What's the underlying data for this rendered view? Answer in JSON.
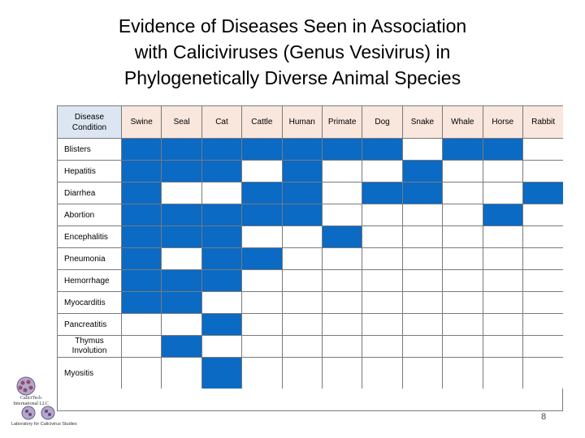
{
  "slide": {
    "title_lines": [
      "Evidence of Diseases Seen in Association",
      "with Caliciviruses (Genus Vesivirus) in",
      "Phylogenetically Diverse Animal Species"
    ],
    "page_number": "8"
  },
  "table": {
    "corner_line1": "Disease",
    "corner_line2": "Condition",
    "species": [
      "Swine",
      "Seal",
      "Cat",
      "Cattle",
      "Human",
      "Primate",
      "Dog",
      "Snake",
      "Whale",
      "Horse",
      "Rabbit"
    ],
    "rows": [
      {
        "label": "Blisters",
        "cells": [
          1,
          1,
          1,
          1,
          1,
          1,
          1,
          0,
          1,
          1,
          0
        ]
      },
      {
        "label": "Hepatitis",
        "cells": [
          1,
          1,
          1,
          0,
          1,
          0,
          0,
          1,
          0,
          0,
          0
        ]
      },
      {
        "label": "Diarrhea",
        "cells": [
          1,
          0,
          0,
          1,
          1,
          0,
          1,
          1,
          0,
          0,
          1
        ]
      },
      {
        "label": "Abortion",
        "cells": [
          1,
          1,
          1,
          1,
          1,
          0,
          0,
          0,
          0,
          1,
          0
        ]
      },
      {
        "label": "Encephalitis",
        "cells": [
          1,
          1,
          1,
          0,
          0,
          1,
          0,
          0,
          0,
          0,
          0
        ]
      },
      {
        "label": "Pneumonia",
        "cells": [
          1,
          0,
          1,
          1,
          0,
          0,
          0,
          0,
          0,
          0,
          0
        ]
      },
      {
        "label": "Hemorrhage",
        "cells": [
          1,
          1,
          1,
          0,
          0,
          0,
          0,
          0,
          0,
          0,
          0
        ]
      },
      {
        "label": "Myocarditis",
        "cells": [
          1,
          1,
          0,
          0,
          0,
          0,
          0,
          0,
          0,
          0,
          0
        ]
      },
      {
        "label": "Pancreatitis",
        "cells": [
          0,
          0,
          1,
          0,
          0,
          0,
          0,
          0,
          0,
          0,
          0
        ]
      },
      {
        "label_line1": "Thymus",
        "label_line2": "Involution",
        "cells": [
          0,
          1,
          0,
          0,
          0,
          0,
          0,
          0,
          0,
          0,
          0
        ]
      },
      {
        "label": "Myositis",
        "cells": [
          0,
          0,
          1,
          0,
          0,
          0,
          0,
          0,
          0,
          0,
          0
        ]
      }
    ],
    "colors": {
      "present": "#0a6ac4",
      "absent": "#ffffff",
      "header": "#f9e6dc",
      "corner": "#dce6f2"
    }
  },
  "branding": {
    "logo_icon": "virus-logo-icon",
    "logo_line1": "CaliciTech",
    "logo_line2": "International LLC",
    "footer_text": "Laboratory for   Calicivirus Studies"
  }
}
